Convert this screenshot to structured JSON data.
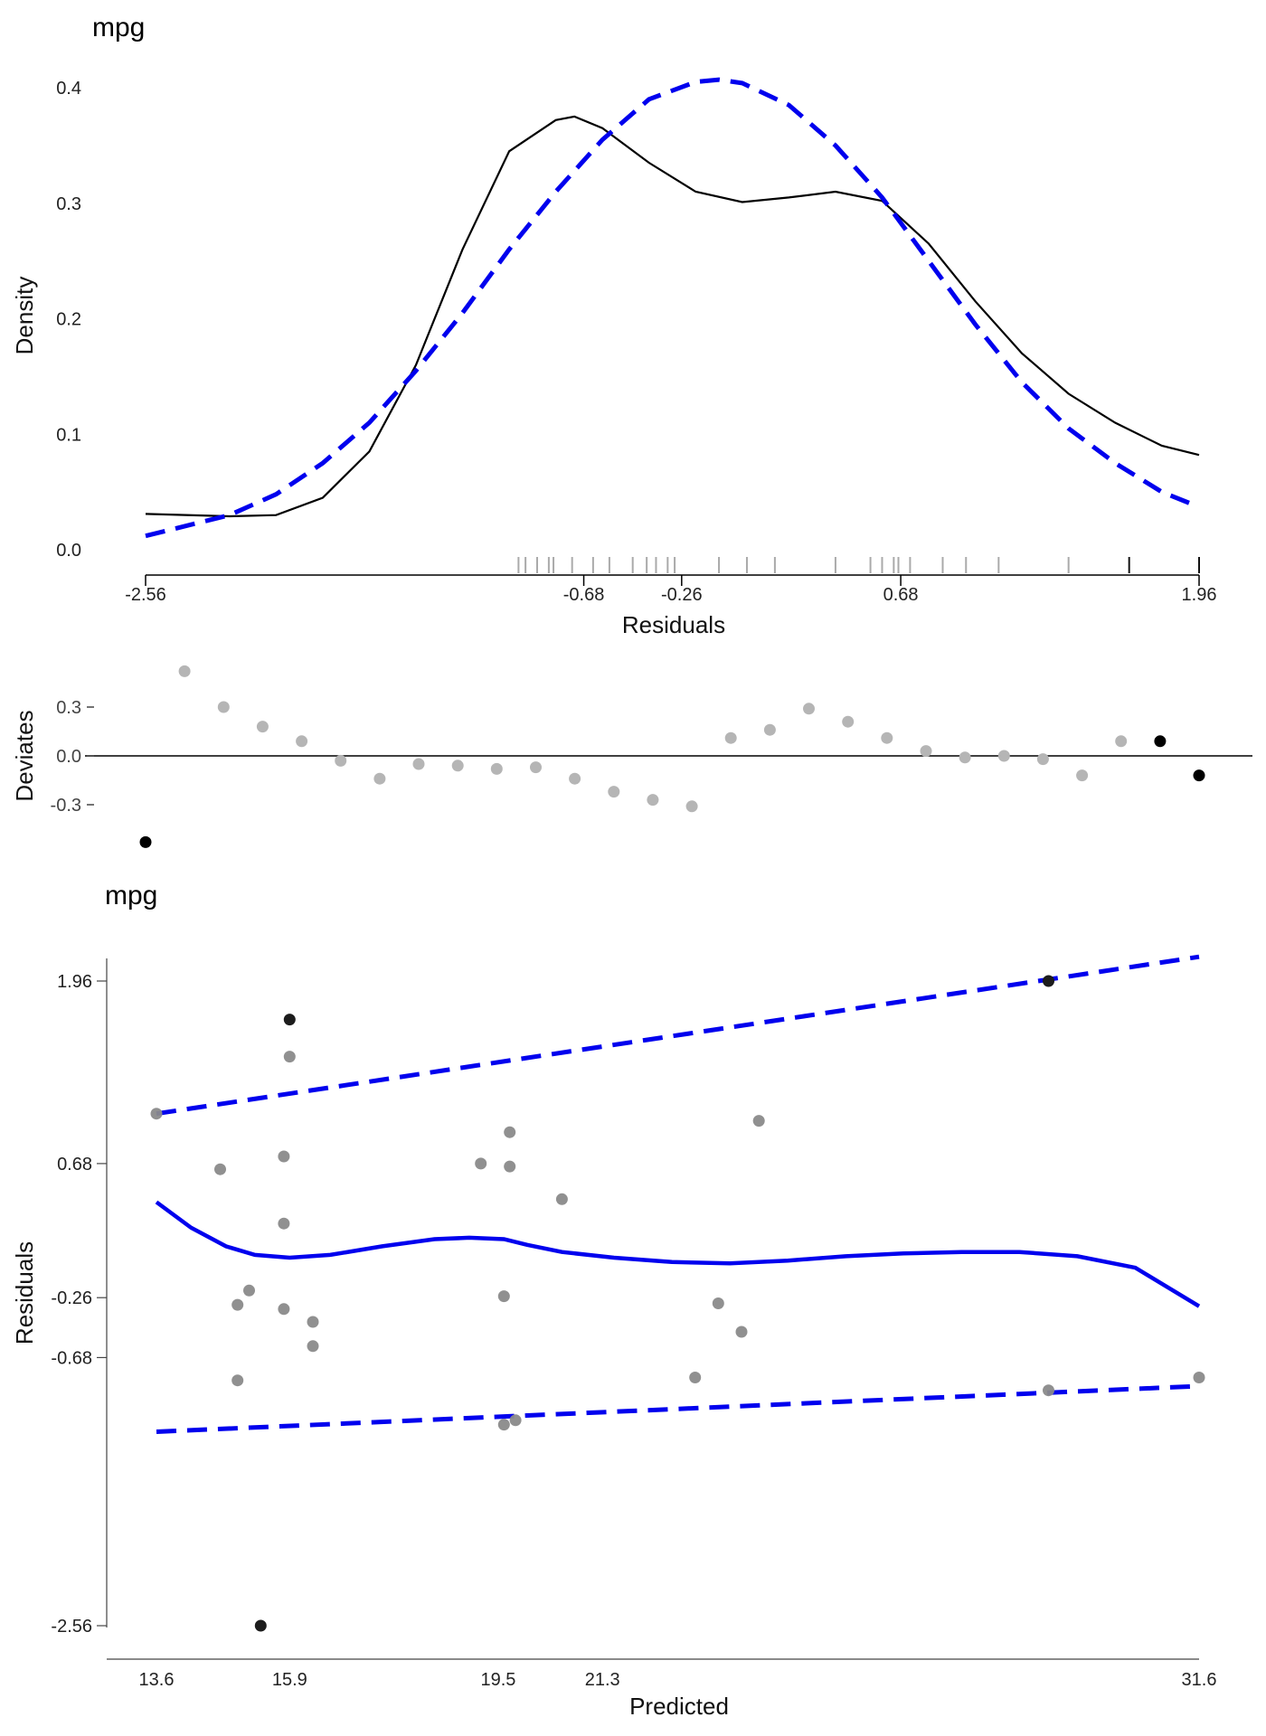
{
  "chart_data": [
    {
      "type": "line",
      "title": "mpg",
      "xlabel": "Residuals",
      "ylabel": "Density",
      "xlim": [
        -2.56,
        1.96
      ],
      "ylim": [
        0,
        0.4
      ],
      "x_ticks": [
        -2.56,
        -0.68,
        -0.26,
        0.68,
        1.96
      ],
      "x_tick_labels": [
        "-2.56",
        "-0.68",
        "-0.26",
        "0.68",
        "1.96"
      ],
      "y_ticks": [
        0.0,
        0.1,
        0.2,
        0.3,
        0.4
      ],
      "y_tick_labels": [
        "0.0",
        "0.1",
        "0.2",
        "0.3",
        "0.4"
      ],
      "grid": false,
      "series": [
        {
          "style": "solid",
          "color": "#000000",
          "x": [
            -2.56,
            -2.2,
            -2.0,
            -1.8,
            -1.6,
            -1.4,
            -1.2,
            -1.0,
            -0.8,
            -0.72,
            -0.6,
            -0.4,
            -0.2,
            0.0,
            0.2,
            0.4,
            0.6,
            0.8,
            1.0,
            1.2,
            1.4,
            1.6,
            1.8,
            1.96
          ],
          "y": [
            0.031,
            0.029,
            0.03,
            0.045,
            0.085,
            0.16,
            0.26,
            0.345,
            0.372,
            0.375,
            0.365,
            0.335,
            0.31,
            0.301,
            0.305,
            0.31,
            0.302,
            0.265,
            0.215,
            0.17,
            0.135,
            0.11,
            0.09,
            0.082
          ]
        },
        {
          "style": "dashed",
          "color": "#0000ee",
          "x": [
            -2.56,
            -2.2,
            -2.0,
            -1.8,
            -1.6,
            -1.4,
            -1.2,
            -1.0,
            -0.8,
            -0.6,
            -0.4,
            -0.2,
            -0.1,
            0.0,
            0.2,
            0.4,
            0.6,
            0.8,
            1.0,
            1.2,
            1.4,
            1.6,
            1.8,
            1.96
          ],
          "y": [
            0.012,
            0.03,
            0.048,
            0.075,
            0.11,
            0.155,
            0.205,
            0.26,
            0.31,
            0.355,
            0.39,
            0.405,
            0.407,
            0.404,
            0.385,
            0.35,
            0.305,
            0.25,
            0.195,
            0.145,
            0.105,
            0.075,
            0.05,
            0.037
          ]
        }
      ],
      "rug": {
        "gray": [
          -0.96,
          -0.93,
          -0.88,
          -0.83,
          -0.81,
          -0.73,
          -0.64,
          -0.57,
          -0.47,
          -0.41,
          -0.37,
          -0.32,
          -0.29,
          -0.1,
          0.02,
          0.14,
          0.4,
          0.55,
          0.6,
          0.65,
          0.67,
          0.72,
          0.86,
          0.96,
          1.1,
          1.4
        ],
        "black": [
          1.66,
          1.96
        ]
      }
    },
    {
      "type": "scatter",
      "ylabel": "Deviates",
      "yticks": [
        -0.3,
        0.0,
        0.3
      ],
      "y_tick_labels": [
        "-0.3",
        "0.0",
        "0.3"
      ],
      "ylim": [
        -0.55,
        0.55
      ],
      "reference_line": 0.0,
      "points": [
        {
          "y": -0.53,
          "highlight": true
        },
        {
          "y": 0.52,
          "highlight": false
        },
        {
          "y": 0.3,
          "highlight": false
        },
        {
          "y": 0.18,
          "highlight": false
        },
        {
          "y": 0.09,
          "highlight": false
        },
        {
          "y": -0.03,
          "highlight": false
        },
        {
          "y": -0.14,
          "highlight": false
        },
        {
          "y": -0.05,
          "highlight": false
        },
        {
          "y": -0.06,
          "highlight": false
        },
        {
          "y": -0.08,
          "highlight": false
        },
        {
          "y": -0.07,
          "highlight": false
        },
        {
          "y": -0.14,
          "highlight": false
        },
        {
          "y": -0.22,
          "highlight": false
        },
        {
          "y": -0.27,
          "highlight": false
        },
        {
          "y": -0.31,
          "highlight": false
        },
        {
          "y": 0.11,
          "highlight": false
        },
        {
          "y": 0.16,
          "highlight": false
        },
        {
          "y": 0.29,
          "highlight": false
        },
        {
          "y": 0.21,
          "highlight": false
        },
        {
          "y": 0.11,
          "highlight": false
        },
        {
          "y": 0.03,
          "highlight": false
        },
        {
          "y": -0.01,
          "highlight": false
        },
        {
          "y": 0.0,
          "highlight": false
        },
        {
          "y": -0.02,
          "highlight": false
        },
        {
          "y": -0.12,
          "highlight": false
        },
        {
          "y": 0.09,
          "highlight": false
        },
        {
          "y": 0.09,
          "highlight": true
        },
        {
          "y": -0.12,
          "highlight": true
        }
      ]
    },
    {
      "type": "scatter",
      "title": "mpg",
      "xlabel": "Predicted",
      "ylabel": "Residuals",
      "xlim": [
        13.6,
        31.6
      ],
      "ylim": [
        -2.56,
        1.96
      ],
      "x_ticks": [
        13.6,
        15.9,
        19.5,
        21.3,
        31.6
      ],
      "x_tick_labels": [
        "13.6",
        "15.9",
        "19.5",
        "21.3",
        "31.6"
      ],
      "y_ticks": [
        1.96,
        0.68,
        -0.26,
        -0.68,
        -2.56
      ],
      "y_tick_labels": [
        "1.96",
        "0.68",
        "-0.26",
        "-0.68",
        "-2.56"
      ],
      "grid": false,
      "points": [
        {
          "x": 13.6,
          "y": 1.03,
          "highlight": false
        },
        {
          "x": 14.7,
          "y": 0.64,
          "highlight": false
        },
        {
          "x": 15.0,
          "y": -0.31,
          "highlight": false
        },
        {
          "x": 15.0,
          "y": -0.84,
          "highlight": false
        },
        {
          "x": 15.2,
          "y": -0.21,
          "highlight": false
        },
        {
          "x": 15.4,
          "y": -2.56,
          "highlight": true
        },
        {
          "x": 15.8,
          "y": 0.73,
          "highlight": false
        },
        {
          "x": 15.8,
          "y": 0.26,
          "highlight": false
        },
        {
          "x": 15.8,
          "y": -0.34,
          "highlight": false
        },
        {
          "x": 15.9,
          "y": 1.69,
          "highlight": true
        },
        {
          "x": 15.9,
          "y": 1.43,
          "highlight": false
        },
        {
          "x": 16.3,
          "y": -0.43,
          "highlight": false
        },
        {
          "x": 16.3,
          "y": -0.6,
          "highlight": false
        },
        {
          "x": 19.2,
          "y": 0.68,
          "highlight": false
        },
        {
          "x": 19.6,
          "y": -0.25,
          "highlight": false
        },
        {
          "x": 19.6,
          "y": -1.15,
          "highlight": false
        },
        {
          "x": 19.7,
          "y": 0.9,
          "highlight": false
        },
        {
          "x": 19.7,
          "y": 0.66,
          "highlight": false
        },
        {
          "x": 19.8,
          "y": -1.12,
          "highlight": false
        },
        {
          "x": 20.6,
          "y": 0.43,
          "highlight": false
        },
        {
          "x": 22.9,
          "y": -0.82,
          "highlight": false
        },
        {
          "x": 23.3,
          "y": -0.3,
          "highlight": false
        },
        {
          "x": 23.7,
          "y": -0.5,
          "highlight": false
        },
        {
          "x": 24.0,
          "y": 0.98,
          "highlight": false
        },
        {
          "x": 29.0,
          "y": -0.91,
          "highlight": false
        },
        {
          "x": 29.0,
          "y": 1.96,
          "highlight": true
        },
        {
          "x": 31.6,
          "y": -0.82,
          "highlight": false
        }
      ],
      "series": [
        {
          "style": "solid",
          "color": "#0000ee",
          "x": [
            13.6,
            14.2,
            14.8,
            15.3,
            15.9,
            16.6,
            17.5,
            18.4,
            19.0,
            19.6,
            20.0,
            20.6,
            21.5,
            22.5,
            23.5,
            24.5,
            25.5,
            26.5,
            27.5,
            28.5,
            29.5,
            30.5,
            31.6
          ],
          "y": [
            0.41,
            0.23,
            0.1,
            0.04,
            0.02,
            0.04,
            0.1,
            0.15,
            0.16,
            0.15,
            0.11,
            0.06,
            0.02,
            -0.01,
            -0.02,
            0.0,
            0.03,
            0.05,
            0.06,
            0.06,
            0.03,
            -0.05,
            -0.32
          ]
        },
        {
          "style": "dashed",
          "color": "#0000ee",
          "x": [
            13.6,
            31.6
          ],
          "y": [
            1.03,
            2.13
          ]
        },
        {
          "style": "dashed",
          "color": "#0000ee",
          "x": [
            13.6,
            31.6
          ],
          "y": [
            -1.2,
            -0.88
          ]
        }
      ]
    }
  ]
}
